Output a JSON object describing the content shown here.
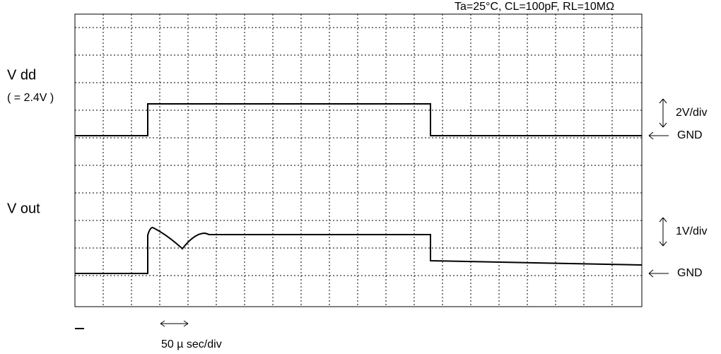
{
  "title": "Ta=25°C, CL=100pF, RL=10MΩ",
  "channels": [
    {
      "name": "V dd",
      "note": "( = 2.4V )",
      "scale": "2V/div",
      "ground": "GND"
    },
    {
      "name": "V out",
      "scale": "1V/div",
      "ground": "GND"
    }
  ],
  "timebase": "50 µ sec/div"
}
